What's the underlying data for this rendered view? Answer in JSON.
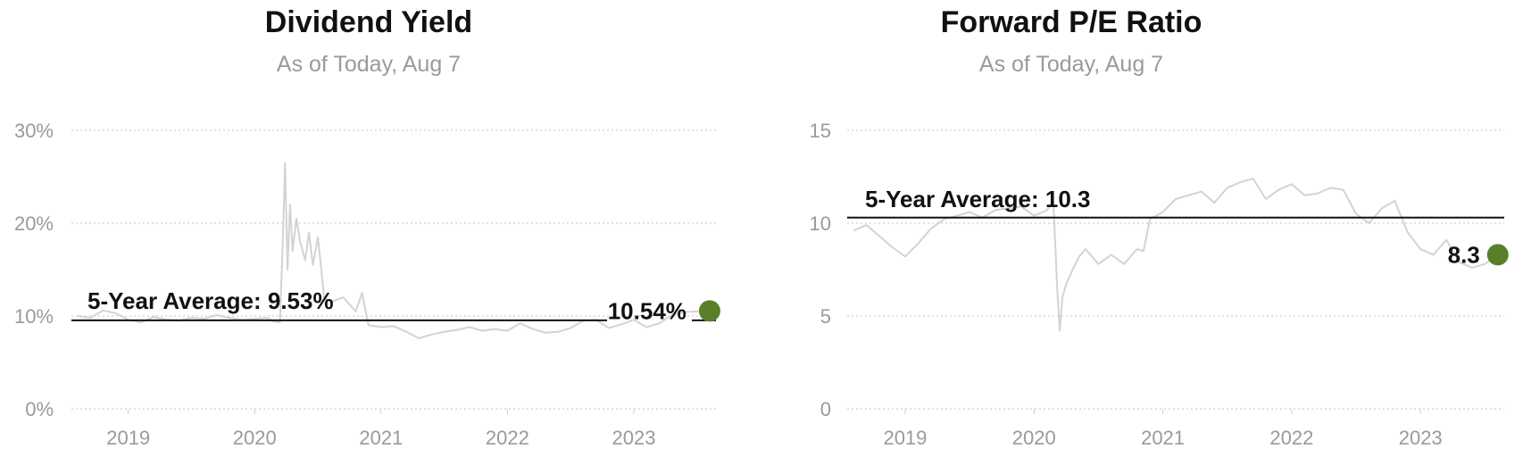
{
  "colors": {
    "series": "#d3d3d3",
    "grid": "#cfcfcf",
    "accent": "#5a7f2a",
    "text": "#111111",
    "muted": "#9a9a9a"
  },
  "chart_data": [
    {
      "type": "line",
      "title": "Dividend Yield",
      "subtitle": "As of Today, Aug 7",
      "yticks": [
        "0%",
        "10%",
        "20%",
        "30%"
      ],
      "ylim": [
        0,
        30
      ],
      "xticks": [
        "2019",
        "2020",
        "2021",
        "2022",
        "2023"
      ],
      "xlim": [
        2018.55,
        2023.65
      ],
      "grid": true,
      "average": {
        "label": "5-Year Average: 9.53%",
        "value": 9.53
      },
      "current": {
        "label": "10.54%",
        "x": 2023.6,
        "value": 10.54
      },
      "series": [
        {
          "x": [
            2018.6,
            2018.7,
            2018.8,
            2018.9,
            2019.0,
            2019.1,
            2019.2,
            2019.3,
            2019.4,
            2019.5,
            2019.6,
            2019.7,
            2019.8,
            2019.9,
            2020.0,
            2020.1,
            2020.15,
            2020.2,
            2020.22,
            2020.24,
            2020.26,
            2020.28,
            2020.3,
            2020.33,
            2020.36,
            2020.4,
            2020.43,
            2020.46,
            2020.5,
            2020.55,
            2020.6,
            2020.7,
            2020.8,
            2020.85,
            2020.9,
            2021.0,
            2021.1,
            2021.2,
            2021.3,
            2021.4,
            2021.5,
            2021.6,
            2021.7,
            2021.8,
            2021.9,
            2022.0,
            2022.1,
            2022.2,
            2022.3,
            2022.4,
            2022.5,
            2022.6,
            2022.7,
            2022.8,
            2022.9,
            2023.0,
            2023.1,
            2023.2,
            2023.3,
            2023.4,
            2023.5,
            2023.6
          ],
          "values": [
            10,
            9.8,
            10.6,
            10.3,
            9.6,
            9.3,
            9.9,
            9.6,
            9.5,
            9.8,
            9.7,
            10.1,
            9.8,
            9.6,
            9.7,
            9.8,
            9.4,
            9.3,
            17,
            26.5,
            15,
            22,
            17,
            20.5,
            18,
            16,
            19,
            15.5,
            18.5,
            12,
            11.5,
            12,
            10.5,
            12.5,
            9,
            8.8,
            8.9,
            8.3,
            7.6,
            8,
            8.3,
            8.5,
            8.8,
            8.4,
            8.6,
            8.4,
            9.2,
            8.6,
            8.2,
            8.3,
            8.7,
            9.5,
            9.6,
            8.7,
            9.1,
            9.6,
            8.8,
            9.2,
            10.1,
            10.4,
            10.5,
            10.54
          ]
        }
      ]
    },
    {
      "type": "line",
      "title": "Forward P/E Ratio",
      "subtitle": "As of Today, Aug 7",
      "yticks": [
        "0",
        "5",
        "10",
        "15"
      ],
      "ylim": [
        0,
        15
      ],
      "xticks": [
        "2019",
        "2020",
        "2021",
        "2022",
        "2023"
      ],
      "xlim": [
        2018.55,
        2023.65
      ],
      "grid": true,
      "average": {
        "label": "5-Year Average: 10.3",
        "value": 10.3
      },
      "current": {
        "label": "8.3",
        "x": 2023.6,
        "value": 8.3
      },
      "series": [
        {
          "x": [
            2018.6,
            2018.7,
            2018.8,
            2018.9,
            2019.0,
            2019.1,
            2019.2,
            2019.3,
            2019.4,
            2019.5,
            2019.6,
            2019.7,
            2019.8,
            2019.9,
            2020.0,
            2020.1,
            2020.15,
            2020.18,
            2020.2,
            2020.22,
            2020.25,
            2020.3,
            2020.35,
            2020.4,
            2020.5,
            2020.6,
            2020.7,
            2020.75,
            2020.8,
            2020.85,
            2020.9,
            2021.0,
            2021.1,
            2021.2,
            2021.3,
            2021.4,
            2021.5,
            2021.6,
            2021.7,
            2021.8,
            2021.9,
            2022.0,
            2022.1,
            2022.2,
            2022.3,
            2022.4,
            2022.5,
            2022.6,
            2022.7,
            2022.8,
            2022.9,
            2023.0,
            2023.1,
            2023.2,
            2023.3,
            2023.4,
            2023.5,
            2023.6
          ],
          "values": [
            9.6,
            9.9,
            9.3,
            8.7,
            8.2,
            8.9,
            9.7,
            10.2,
            10.4,
            10.6,
            10.3,
            10.7,
            10.8,
            10.9,
            10.4,
            10.7,
            11.2,
            6.5,
            4.2,
            6,
            6.7,
            7.5,
            8.2,
            8.6,
            7.8,
            8.3,
            7.8,
            8.2,
            8.6,
            8.5,
            10.2,
            10.6,
            11.3,
            11.5,
            11.7,
            11.1,
            11.9,
            12.2,
            12.4,
            11.3,
            11.8,
            12.1,
            11.5,
            11.6,
            11.9,
            11.8,
            10.5,
            10,
            10.8,
            11.2,
            9.5,
            8.6,
            8.3,
            9.1,
            7.9,
            7.6,
            7.8,
            8.3
          ]
        }
      ]
    }
  ]
}
